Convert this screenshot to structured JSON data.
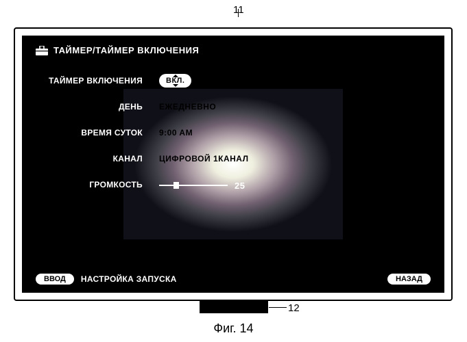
{
  "callouts": {
    "device": "11",
    "ir": "12"
  },
  "figure_label": "Фиг. 14",
  "header": {
    "icon": "toolbox-icon",
    "title": "ТАЙМЕР/ТАЙМЕР ВКЛЮЧЕНИЯ"
  },
  "settings": {
    "on_timer": {
      "label": "ТАЙМЕР ВКЛЮЧЕНИЯ",
      "value": "ВКЛ."
    },
    "day": {
      "label": "ДЕНЬ",
      "value": "ЕЖЕДНЕВНО"
    },
    "time_of_day": {
      "label": "ВРЕМЯ СУТОК",
      "value": "9:00 AM"
    },
    "channel": {
      "label": "КАНАЛ",
      "value": "ЦИФРОВОЙ 1КАНАЛ"
    },
    "volume": {
      "label": "ГРОМКОСТЬ",
      "value": 25,
      "min": 0,
      "max": 100
    }
  },
  "footer": {
    "enter_btn": "ВВОД",
    "hint": "НАСТРОЙКА ЗАПУСКА",
    "back_btn": "НАЗАД"
  },
  "colors": {
    "screen_bg": "#000000",
    "text": "#ffffff",
    "pill_bg": "#ffffff",
    "pill_text": "#000000"
  }
}
